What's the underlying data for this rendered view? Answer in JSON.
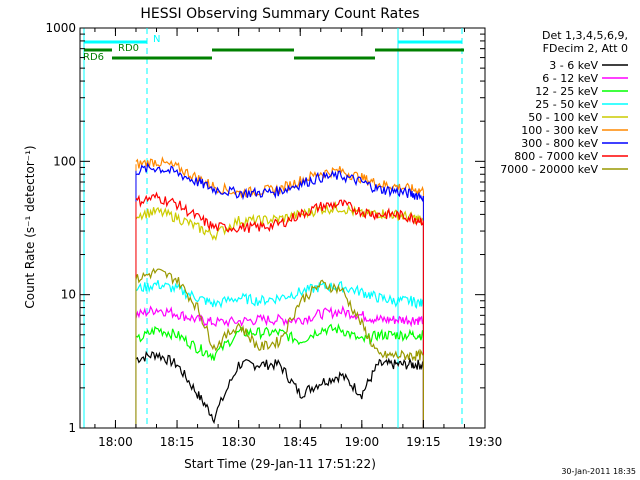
{
  "chart_data": {
    "type": "line",
    "title": "HESSI Observing Summary Count Rates",
    "xlabel": "Start Time (29-Jan-11 17:51:22)",
    "ylabel": "Count Rate (s⁻¹ detector⁻¹)",
    "y_scale": "log",
    "ylim": [
      1,
      1000
    ],
    "xlim": [
      "17:51:22",
      "19:30:00"
    ],
    "x_ticks": [
      "18:00",
      "18:15",
      "18:30",
      "18:45",
      "19:00",
      "19:15",
      "19:30"
    ],
    "y_ticks": [
      "1",
      "10",
      "100",
      "1000"
    ],
    "grid": false,
    "legend_position": "right",
    "legend_header": [
      "Det 1,3,4,5,6,9,",
      "FDecim 2, Att 0"
    ],
    "timestamp": "30-Jan-2011 18:35",
    "series": [
      {
        "name": "3 - 6 keV",
        "color": "#000000",
        "x": [
          "18:05",
          "18:10",
          "18:15",
          "18:20",
          "18:24",
          "18:30",
          "18:35",
          "18:40",
          "18:45",
          "18:50",
          "18:55",
          "19:00",
          "19:04",
          "19:08",
          "19:12",
          "19:15"
        ],
        "values": [
          3.3,
          3.6,
          3.0,
          1.8,
          1.2,
          3.0,
          3.0,
          3.0,
          1.8,
          2.2,
          2.5,
          1.8,
          3.0,
          3.0,
          3.0,
          3.0
        ]
      },
      {
        "name": "6 - 12 keV",
        "color": "#ff00ff",
        "x": [
          "18:05",
          "18:10",
          "18:15",
          "18:20",
          "18:24",
          "18:30",
          "18:35",
          "18:40",
          "18:45",
          "18:50",
          "18:55",
          "19:00",
          "19:04",
          "19:08",
          "19:12",
          "19:15"
        ],
        "values": [
          7.0,
          7.8,
          7.2,
          6.5,
          6.2,
          6.3,
          6.5,
          6.5,
          6.5,
          7.2,
          7.5,
          7.0,
          6.5,
          6.5,
          6.5,
          6.5
        ]
      },
      {
        "name": "12 - 25 keV",
        "color": "#00ff00",
        "x": [
          "18:05",
          "18:10",
          "18:15",
          "18:20",
          "18:24",
          "18:30",
          "18:35",
          "18:40",
          "18:45",
          "18:50",
          "18:55",
          "19:00",
          "19:04",
          "19:08",
          "19:12",
          "19:15"
        ],
        "values": [
          4.5,
          5.5,
          5.0,
          4.0,
          3.5,
          5.2,
          5.2,
          5.2,
          4.5,
          5.5,
          5.5,
          4.5,
          5.0,
          5.0,
          5.0,
          5.0
        ]
      },
      {
        "name": "25 - 50 keV",
        "color": "#00ffff",
        "x": [
          "18:05",
          "18:10",
          "18:15",
          "18:20",
          "18:24",
          "18:30",
          "18:35",
          "18:40",
          "18:45",
          "18:50",
          "18:55",
          "19:00",
          "19:04",
          "19:08",
          "19:12",
          "19:15"
        ],
        "values": [
          11,
          12,
          11,
          9.5,
          8.5,
          9.5,
          9.0,
          9.5,
          10.5,
          11.5,
          11.5,
          10.5,
          9.5,
          9.0,
          9.0,
          8.5
        ]
      },
      {
        "name": "50 - 100 keV",
        "color": "#cccc00",
        "x": [
          "18:05",
          "18:10",
          "18:15",
          "18:20",
          "18:24",
          "18:30",
          "18:35",
          "18:40",
          "18:45",
          "18:50",
          "18:55",
          "19:00",
          "19:04",
          "19:08",
          "19:12",
          "19:15"
        ],
        "values": [
          40,
          42,
          38,
          32,
          28,
          36,
          36,
          37,
          40,
          44,
          45,
          40,
          41,
          40,
          38,
          36
        ]
      },
      {
        "name": "100 - 300 keV",
        "color": "#ff8800",
        "x": [
          "18:05",
          "18:10",
          "18:15",
          "18:20",
          "18:24",
          "18:30",
          "18:35",
          "18:40",
          "18:45",
          "18:50",
          "18:55",
          "19:00",
          "19:04",
          "19:08",
          "19:12",
          "19:15"
        ],
        "values": [
          95,
          100,
          90,
          75,
          65,
          58,
          60,
          62,
          72,
          82,
          85,
          75,
          68,
          65,
          62,
          60
        ]
      },
      {
        "name": "300 - 800 keV",
        "color": "#0000ff",
        "x": [
          "18:05",
          "18:10",
          "18:15",
          "18:20",
          "18:24",
          "18:30",
          "18:35",
          "18:40",
          "18:45",
          "18:50",
          "18:55",
          "19:00",
          "19:04",
          "19:08",
          "19:12",
          "19:15"
        ],
        "values": [
          85,
          90,
          82,
          70,
          62,
          58,
          58,
          60,
          68,
          76,
          78,
          70,
          62,
          60,
          57,
          55
        ]
      },
      {
        "name": "800 - 7000 keV",
        "color": "#ff0000",
        "x": [
          "18:05",
          "18:10",
          "18:15",
          "18:20",
          "18:24",
          "18:30",
          "18:35",
          "18:40",
          "18:45",
          "18:50",
          "18:55",
          "19:00",
          "19:04",
          "19:08",
          "19:12",
          "19:15"
        ],
        "values": [
          50,
          54,
          48,
          38,
          32,
          32,
          32,
          34,
          40,
          46,
          48,
          42,
          40,
          40,
          38,
          36
        ]
      },
      {
        "name": "7000 - 20000 keV",
        "color": "#999900",
        "x": [
          "18:05",
          "18:10",
          "18:15",
          "18:20",
          "18:24",
          "18:30",
          "18:35",
          "18:40",
          "18:45",
          "18:50",
          "18:55",
          "19:00",
          "19:04",
          "19:08",
          "19:12",
          "19:15"
        ],
        "values": [
          13,
          15,
          13,
          8,
          4.0,
          6.0,
          4.0,
          4.5,
          9,
          12,
          11,
          6,
          3.5,
          3.5,
          3.5,
          3.5
        ]
      }
    ],
    "markers": [
      {
        "label": "N",
        "color": "#00ffff"
      },
      {
        "label": "RD0",
        "color": "#008000"
      },
      {
        "label": "RD6",
        "color": "#008000"
      }
    ]
  }
}
